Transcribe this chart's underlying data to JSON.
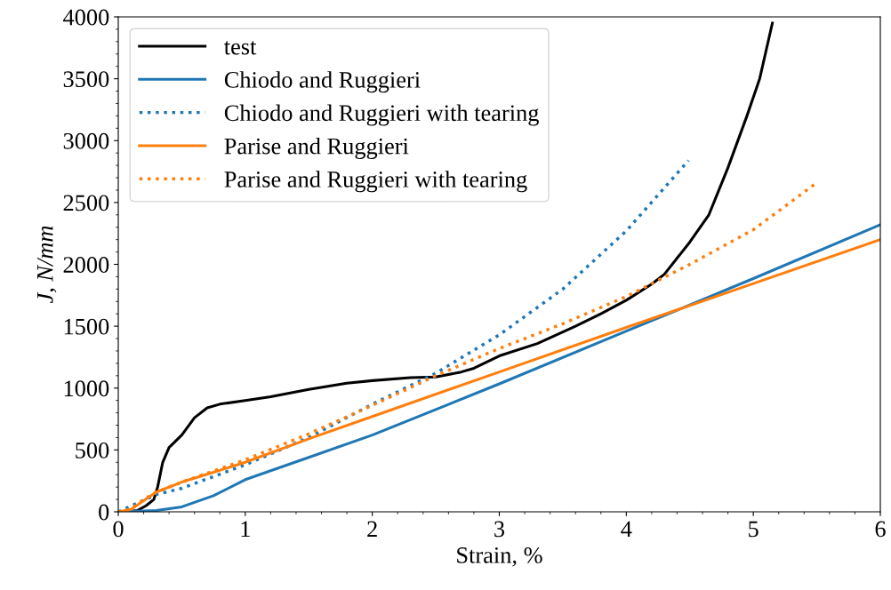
{
  "chart_data": {
    "type": "line",
    "xlabel": "Strain, %",
    "ylabel": "J, N/mm",
    "xlim": [
      0,
      6
    ],
    "ylim": [
      0,
      4000
    ],
    "xticks": [
      0,
      1,
      2,
      3,
      4,
      5,
      6
    ],
    "yticks": [
      0,
      500,
      1000,
      1500,
      2000,
      2500,
      3000,
      3500,
      4000
    ],
    "grid": false,
    "legend": "top left",
    "marker": "none",
    "series": [
      {
        "name": "test",
        "color": "#000000",
        "line_style": "solid",
        "x": [
          0.05,
          0.15,
          0.22,
          0.28,
          0.31,
          0.35,
          0.4,
          0.5,
          0.6,
          0.7,
          0.8,
          1.0,
          1.2,
          1.5,
          1.8,
          2.0,
          2.3,
          2.5,
          2.7,
          2.8,
          3.0,
          3.3,
          3.6,
          3.8,
          4.0,
          4.2,
          4.3,
          4.5,
          4.65,
          4.8,
          4.95,
          5.05,
          5.15
        ],
        "values": [
          0,
          10,
          50,
          100,
          200,
          400,
          520,
          620,
          760,
          840,
          870,
          900,
          930,
          990,
          1040,
          1060,
          1085,
          1090,
          1130,
          1160,
          1260,
          1360,
          1500,
          1600,
          1710,
          1840,
          1920,
          2180,
          2400,
          2780,
          3200,
          3500,
          3950
        ]
      },
      {
        "name": "Chiodo and Ruggieri",
        "color": "#1f77b4",
        "line_style": "solid",
        "x": [
          0,
          0.3,
          0.5,
          0.75,
          1,
          1.5,
          2,
          3,
          4,
          5,
          6
        ],
        "values": [
          0,
          10,
          40,
          130,
          260,
          440,
          620,
          1034,
          1460,
          1885,
          2320
        ]
      },
      {
        "name": "Chiodo and Ruggieri with tearing",
        "color": "#1f77b4",
        "line_style": "dotted",
        "x": [
          0,
          0.3,
          0.5,
          1,
          1.5,
          2,
          2.5,
          3,
          3.5,
          4,
          4.49
        ],
        "values": [
          0,
          140,
          190,
          380,
          600,
          870,
          1120,
          1430,
          1800,
          2270,
          2840
        ]
      },
      {
        "name": "Parise and Ruggieri",
        "color": "#ff7f0e",
        "line_style": "solid",
        "x": [
          0,
          0.1,
          0.2,
          0.3,
          0.5,
          0.75,
          1,
          1.5,
          2,
          3,
          4,
          5,
          6
        ],
        "values": [
          0,
          20,
          90,
          160,
          240,
          320,
          400,
          590,
          770,
          1130,
          1490,
          1845,
          2200
        ]
      },
      {
        "name": "Parise and Ruggieri with tearing",
        "color": "#ff7f0e",
        "line_style": "dotted",
        "x": [
          0,
          0.1,
          0.2,
          0.3,
          0.5,
          1,
          1.5,
          2,
          2.5,
          3,
          3.5,
          4,
          4.5,
          5,
          5.5
        ],
        "values": [
          0,
          20,
          100,
          160,
          240,
          420,
          630,
          860,
          1100,
          1320,
          1520,
          1740,
          2000,
          2280,
          2660
        ]
      }
    ]
  }
}
